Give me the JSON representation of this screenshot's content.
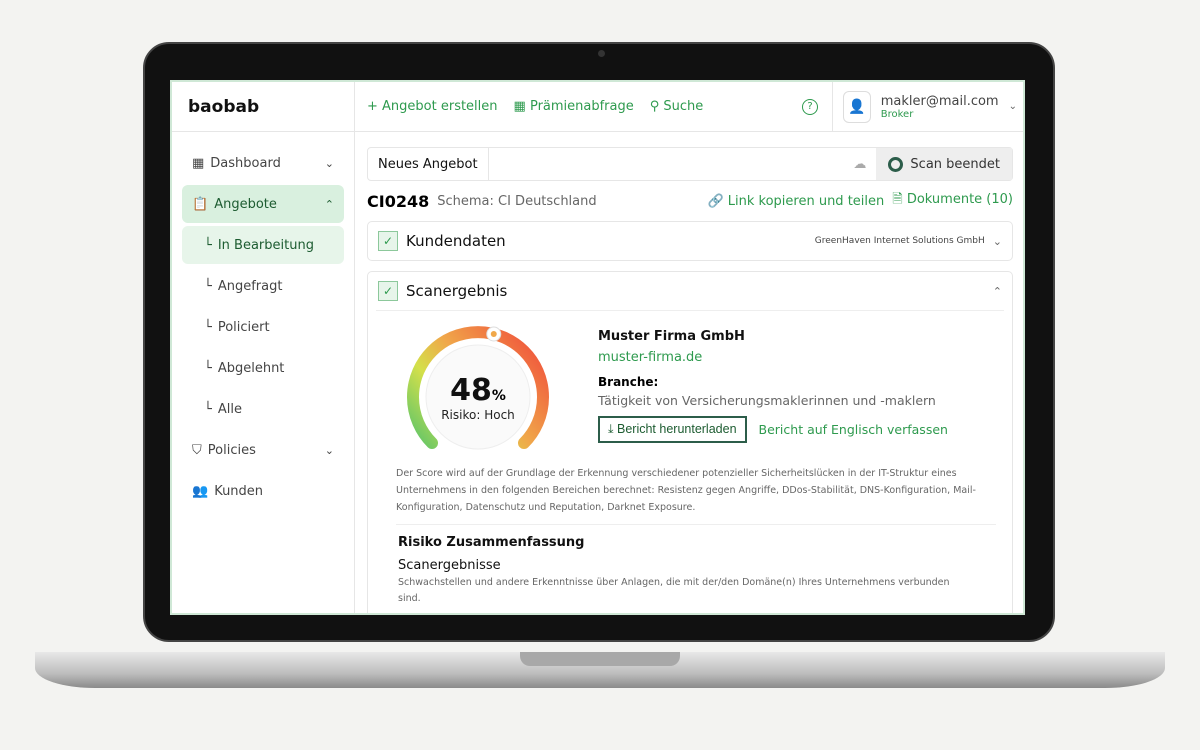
{
  "app": {
    "logo": "baobab"
  },
  "topnav": {
    "create": "Angebot erstellen",
    "premium": "Prämienabfrage",
    "search": "Suche",
    "help": "?"
  },
  "user": {
    "email": "makler@mail.com",
    "role": "Broker"
  },
  "sidebar": {
    "items": [
      {
        "label": "Dashboard"
      },
      {
        "label": "Angebote"
      },
      {
        "label": "In Bearbeitung"
      },
      {
        "label": "Angefragt"
      },
      {
        "label": "Policiert"
      },
      {
        "label": "Abgelehnt"
      },
      {
        "label": "Alle"
      },
      {
        "label": "Policies"
      },
      {
        "label": "Kunden"
      }
    ]
  },
  "offer": {
    "name": "Neues Angebot",
    "scan_status": "Scan beendet",
    "id": "CI0248",
    "schema": "Schema: CI Deutschland",
    "share": "Link kopieren und teilen",
    "docs": "Dokumente (10)"
  },
  "customer": {
    "title": "Kundendaten",
    "company": "GreenHaven Internet Solutions GmbH"
  },
  "scan": {
    "title": "Scanergebnis",
    "score": 48,
    "score_label": "48",
    "percent": "%",
    "risk": "Risiko: Hoch",
    "firm": "Muster Firma GmbH",
    "domain": "muster-firma.de",
    "branche_label": "Branche:",
    "branche": "Tätigkeit von Versicherungsmaklerinnen und -maklern",
    "download": "Bericht herunterladen",
    "english": "Bericht auf Englisch verfassen",
    "description": "Der Score wird auf der Grundlage der Erkennung verschiedener potenzieller Sicherheitslücken in der IT-Struktur eines Unternehmens in den folgenden Bereichen berechnet: Resistenz gegen Angriffe, DDos-Stabilität, DNS-Konfiguration, Mail-Konfiguration, Datenschutz und Reputation, Darknet Exposure.",
    "summary_title": "Risiko Zusammenfassung",
    "results_title": "Scanergebnisse",
    "results_text": "Schwachstellen und andere Erkenntnisse über Anlagen, die mit der/den Domäne(n) Ihres Unternehmens verbunden sind."
  },
  "colors": {
    "accent": "#2e9a4e",
    "dark": "#2c5d4a"
  }
}
